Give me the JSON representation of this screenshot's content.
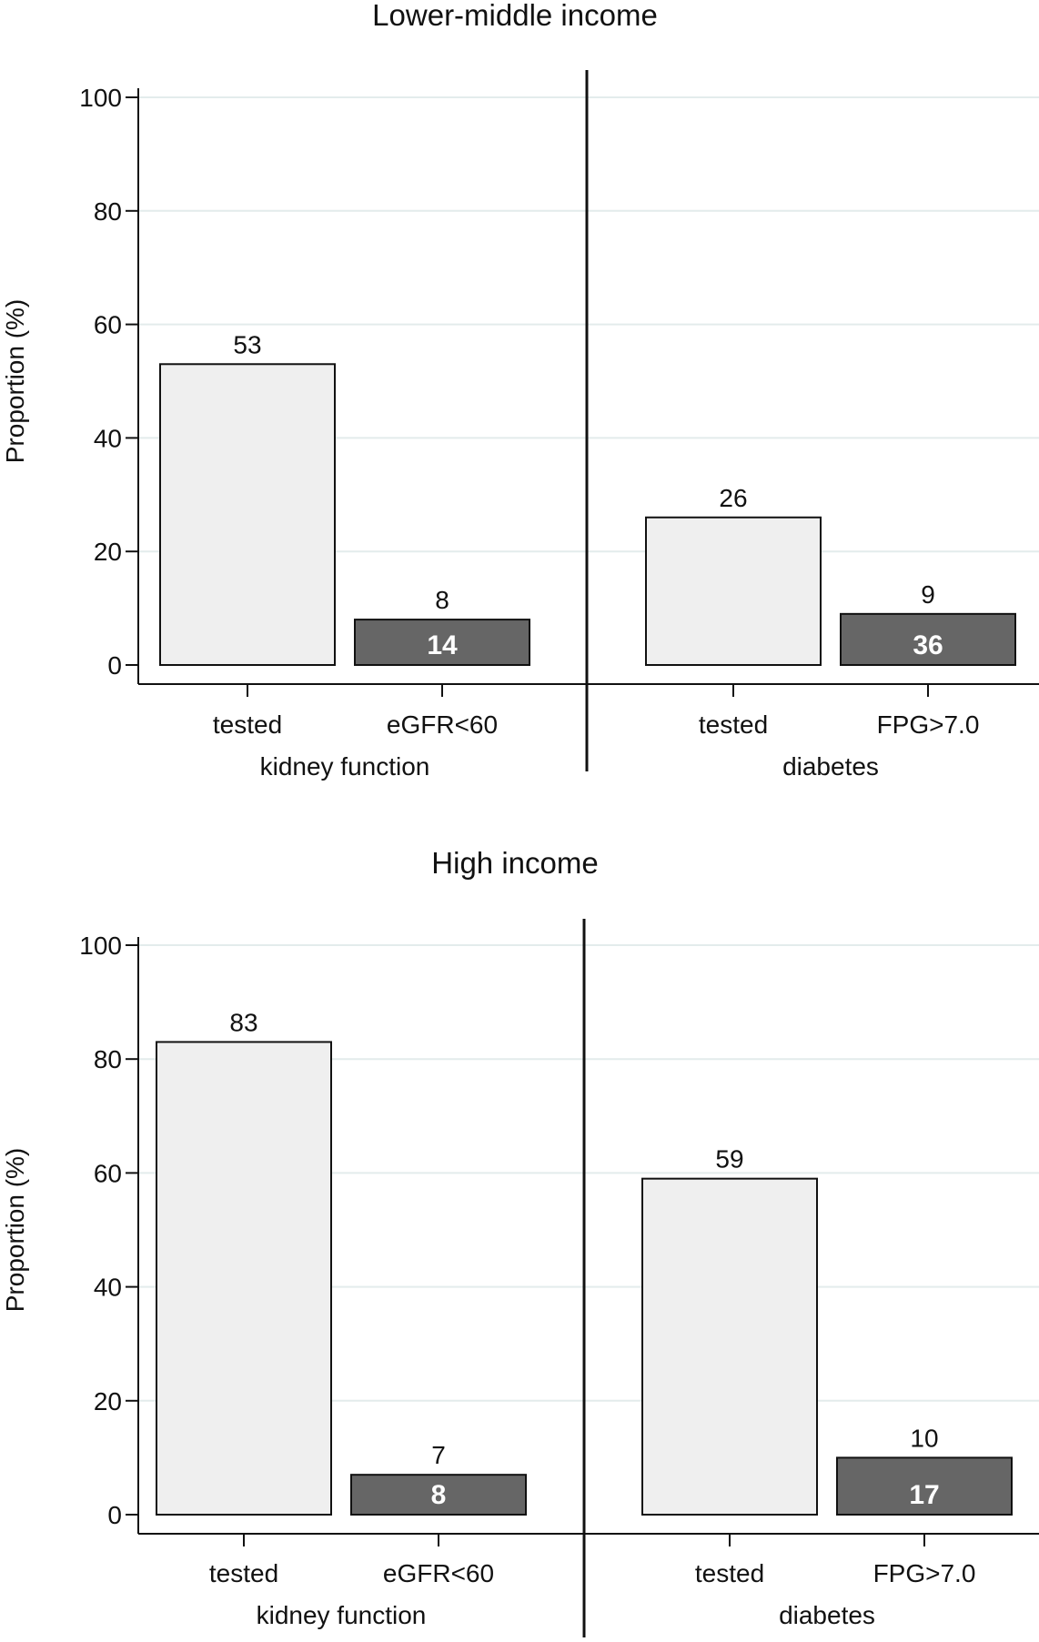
{
  "chart_data": [
    {
      "type": "bar",
      "title": "Lower-middle income",
      "ylabel": "Proportion (%)",
      "ylim": [
        0,
        100
      ],
      "yticks": [
        0,
        20,
        40,
        60,
        80,
        100
      ],
      "grid": true,
      "groups": [
        {
          "name": "kidney function",
          "bars": [
            {
              "label": "tested",
              "value": 53,
              "value_label": "53",
              "style": "light"
            },
            {
              "label": "eGFR<60",
              "value": 8,
              "value_label": "8",
              "inner_label": "14",
              "style": "dark"
            }
          ]
        },
        {
          "name": "diabetes",
          "bars": [
            {
              "label": "tested",
              "value": 26,
              "value_label": "26",
              "style": "light"
            },
            {
              "label": "FPG>7.0",
              "value": 9,
              "value_label": "9",
              "inner_label": "36",
              "style": "dark"
            }
          ]
        }
      ]
    },
    {
      "type": "bar",
      "title": "High income",
      "ylabel": "Proportion (%)",
      "ylim": [
        0,
        100
      ],
      "yticks": [
        0,
        20,
        40,
        60,
        80,
        100
      ],
      "grid": true,
      "groups": [
        {
          "name": "kidney function",
          "bars": [
            {
              "label": "tested",
              "value": 83,
              "value_label": "83",
              "style": "light"
            },
            {
              "label": "eGFR<60",
              "value": 7,
              "value_label": "7",
              "inner_label": "8",
              "style": "dark"
            }
          ]
        },
        {
          "name": "diabetes",
          "bars": [
            {
              "label": "tested",
              "value": 59,
              "value_label": "59",
              "style": "light"
            },
            {
              "label": "FPG>7.0",
              "value": 10,
              "value_label": "10",
              "inner_label": "17",
              "style": "dark"
            }
          ]
        }
      ]
    }
  ],
  "colors": {
    "light_bar": "#efefef",
    "dark_bar": "#666666",
    "gridline": "#e3ecec",
    "axis": "#111111"
  }
}
